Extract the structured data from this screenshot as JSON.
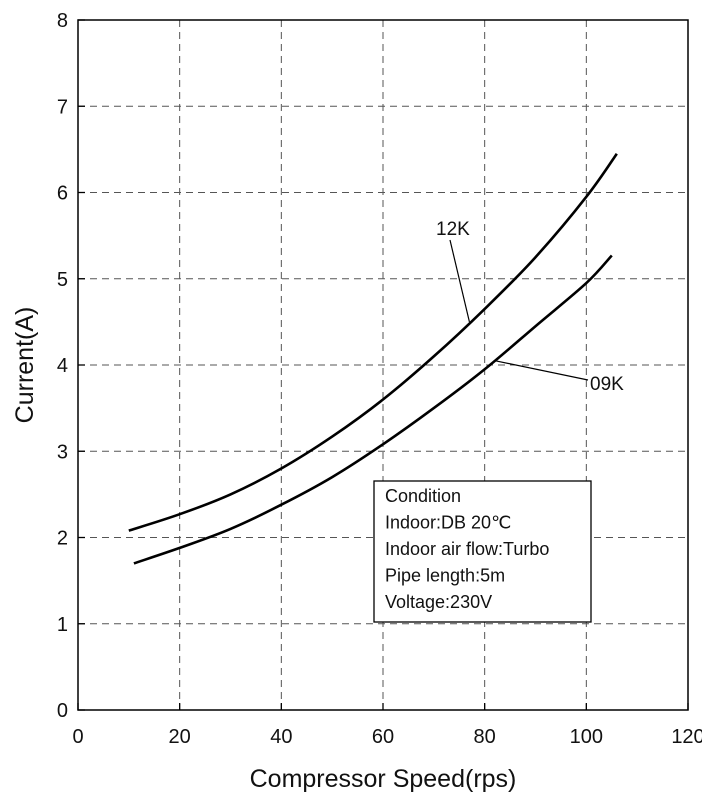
{
  "chart_data": {
    "type": "line",
    "xlabel": "Compressor Speed(rps)",
    "ylabel": "Current(A)",
    "xlim": [
      0,
      120
    ],
    "ylim": [
      0,
      8
    ],
    "xticks": [
      "0",
      "20",
      "40",
      "60",
      "80",
      "100",
      "120"
    ],
    "yticks": [
      "0",
      "1",
      "2",
      "3",
      "4",
      "5",
      "6",
      "7",
      "8"
    ],
    "grid": true,
    "series": [
      {
        "name": "12K",
        "x": [
          10,
          20,
          30,
          40,
          50,
          60,
          70,
          80,
          90,
          100,
          106
        ],
        "y": [
          2.08,
          2.27,
          2.5,
          2.8,
          3.17,
          3.6,
          4.1,
          4.65,
          5.25,
          5.95,
          6.45
        ]
      },
      {
        "name": "09K",
        "x": [
          11,
          20,
          30,
          40,
          50,
          60,
          70,
          80,
          90,
          100,
          105
        ],
        "y": [
          1.7,
          1.88,
          2.1,
          2.38,
          2.7,
          3.08,
          3.5,
          3.95,
          4.45,
          4.95,
          5.27
        ]
      }
    ],
    "annotations": [
      {
        "text": "12K",
        "pointer_x": 77,
        "pointer_y": 4.5
      },
      {
        "text": "09K",
        "pointer_x": 82,
        "pointer_y": 4.05
      }
    ],
    "condition_box": {
      "lines": [
        "Condition",
        "Indoor:DB 20℃",
        "Indoor air flow:Turbo",
        "Pipe length:5m",
        "Voltage:230V"
      ]
    }
  }
}
